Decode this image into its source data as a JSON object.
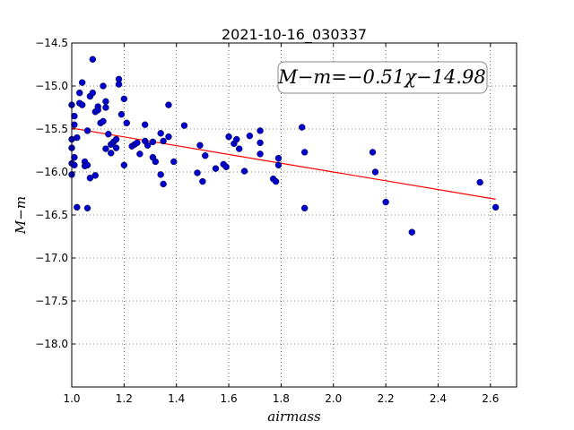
{
  "chart_data": {
    "type": "scatter",
    "title": "2021-10-16_030337",
    "xlabel": "airmass",
    "ylabel": "M−m",
    "xlim": [
      1.0,
      2.7
    ],
    "ylim": [
      -18.5,
      -14.5
    ],
    "y_inverted": true,
    "grid": true,
    "x_ticks": [
      "1.0",
      "1.2",
      "1.4",
      "1.6",
      "1.8",
      "2.0",
      "2.2",
      "2.4",
      "2.6"
    ],
    "y_ticks": [
      "-14.5",
      "-15.0",
      "-15.5",
      "-16.0",
      "-16.5",
      "-17.0",
      "-17.5",
      "-18.0"
    ],
    "annotation": "M−m=−0.51χ−14.98",
    "fit": {
      "slope": -0.51,
      "intercept": -14.98,
      "x_range": [
        1.0,
        2.62
      ],
      "color": "#ff0000"
    },
    "point_color": "#0000cc",
    "points": [
      [
        1.0,
        -15.22
      ],
      [
        1.0,
        -15.62
      ],
      [
        1.0,
        -15.72
      ],
      [
        1.0,
        -15.9
      ],
      [
        1.0,
        -16.03
      ],
      [
        1.01,
        -15.35
      ],
      [
        1.01,
        -15.45
      ],
      [
        1.01,
        -15.83
      ],
      [
        1.01,
        -15.92
      ],
      [
        1.02,
        -15.6
      ],
      [
        1.02,
        -16.41
      ],
      [
        1.03,
        -15.08
      ],
      [
        1.03,
        -15.2
      ],
      [
        1.04,
        -15.22
      ],
      [
        1.04,
        -14.96
      ],
      [
        1.05,
        -15.88
      ],
      [
        1.05,
        -15.93
      ],
      [
        1.06,
        -15.92
      ],
      [
        1.06,
        -16.42
      ],
      [
        1.06,
        -15.52
      ],
      [
        1.07,
        -15.12
      ],
      [
        1.07,
        -16.07
      ],
      [
        1.08,
        -15.08
      ],
      [
        1.08,
        -14.69
      ],
      [
        1.09,
        -15.3
      ],
      [
        1.09,
        -16.04
      ],
      [
        1.1,
        -15.24
      ],
      [
        1.1,
        -15.28
      ],
      [
        1.11,
        -15.43
      ],
      [
        1.12,
        -15.41
      ],
      [
        1.12,
        -15.0
      ],
      [
        1.13,
        -15.18
      ],
      [
        1.13,
        -15.25
      ],
      [
        1.13,
        -15.73
      ],
      [
        1.14,
        -15.56
      ],
      [
        1.15,
        -15.68
      ],
      [
        1.15,
        -15.78
      ],
      [
        1.16,
        -15.65
      ],
      [
        1.17,
        -15.62
      ],
      [
        1.17,
        -15.72
      ],
      [
        1.18,
        -14.92
      ],
      [
        1.18,
        -14.98
      ],
      [
        1.19,
        -15.33
      ],
      [
        1.2,
        -15.15
      ],
      [
        1.2,
        -15.92
      ],
      [
        1.21,
        -15.43
      ],
      [
        1.23,
        -15.7
      ],
      [
        1.24,
        -15.68
      ],
      [
        1.25,
        -15.66
      ],
      [
        1.26,
        -15.79
      ],
      [
        1.28,
        -15.45
      ],
      [
        1.28,
        -15.64
      ],
      [
        1.29,
        -15.69
      ],
      [
        1.31,
        -15.65
      ],
      [
        1.31,
        -15.83
      ],
      [
        1.32,
        -15.88
      ],
      [
        1.34,
        -15.55
      ],
      [
        1.34,
        -16.03
      ],
      [
        1.35,
        -16.14
      ],
      [
        1.35,
        -15.64
      ],
      [
        1.37,
        -15.22
      ],
      [
        1.37,
        -15.59
      ],
      [
        1.39,
        -15.88
      ],
      [
        1.43,
        -15.46
      ],
      [
        1.48,
        -16.01
      ],
      [
        1.49,
        -15.69
      ],
      [
        1.5,
        -16.11
      ],
      [
        1.51,
        -15.81
      ],
      [
        1.55,
        -15.96
      ],
      [
        1.58,
        -15.91
      ],
      [
        1.59,
        -15.94
      ],
      [
        1.6,
        -15.59
      ],
      [
        1.62,
        -15.67
      ],
      [
        1.63,
        -15.62
      ],
      [
        1.64,
        -15.73
      ],
      [
        1.66,
        -15.99
      ],
      [
        1.68,
        -15.58
      ],
      [
        1.72,
        -15.52
      ],
      [
        1.72,
        -15.66
      ],
      [
        1.72,
        -15.79
      ],
      [
        1.77,
        -16.08
      ],
      [
        1.78,
        -16.11
      ],
      [
        1.79,
        -15.84
      ],
      [
        1.79,
        -15.92
      ],
      [
        1.88,
        -15.48
      ],
      [
        1.89,
        -15.77
      ],
      [
        1.89,
        -16.42
      ],
      [
        2.15,
        -15.77
      ],
      [
        2.16,
        -16.0
      ],
      [
        2.2,
        -16.35
      ],
      [
        2.3,
        -16.7
      ],
      [
        2.56,
        -16.12
      ],
      [
        2.62,
        -16.41
      ]
    ]
  }
}
